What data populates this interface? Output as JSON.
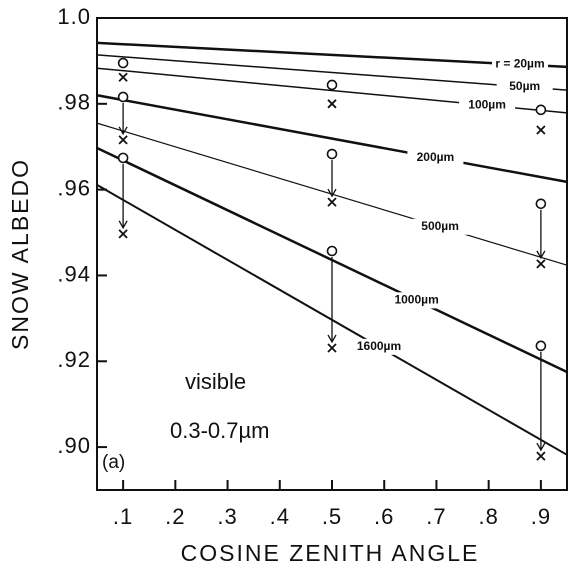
{
  "chart_data": {
    "type": "line",
    "x_label": "COSINE ZENITH ANGLE",
    "y_label": "SNOW ALBEDO",
    "annotations": [
      "visible",
      "0.3-0.7µm",
      "(a)"
    ],
    "x": [
      0.05,
      0.95
    ],
    "series": [
      {
        "name": "r = 20µm",
        "color": "#111111",
        "values": [
          0.9942,
          0.9886
        ]
      },
      {
        "name": "50µm",
        "color": "#111111",
        "values": [
          0.9914,
          0.9832
        ]
      },
      {
        "name": "100µm",
        "color": "#111111",
        "values": [
          0.9883,
          0.9779
        ]
      },
      {
        "name": "200µm",
        "color": "#111111",
        "values": [
          0.982,
          0.9618
        ]
      },
      {
        "name": "500µm",
        "color": "#111111",
        "values": [
          0.9755,
          0.9424
        ]
      },
      {
        "name": "1000µm",
        "color": "#111111",
        "values": [
          0.9697,
          0.9175
        ]
      },
      {
        "name": "1600µm",
        "color": "#111111",
        "values": [
          0.9611,
          0.8982
        ]
      }
    ],
    "scatter": [
      {
        "marker": "o",
        "x": [
          0.1,
          0.1,
          0.1,
          0.5,
          0.5,
          0.5,
          0.9,
          0.9,
          0.9
        ],
        "values": [
          0.9895,
          0.9816,
          0.9674,
          0.9844,
          0.9683,
          0.9457,
          0.9786,
          0.9567,
          0.9236
        ]
      },
      {
        "marker": "x",
        "x": [
          0.1,
          0.1,
          0.1,
          0.5,
          0.5,
          0.5,
          0.9,
          0.9,
          0.9
        ],
        "values": [
          0.9862,
          0.9716,
          0.9497,
          0.98,
          0.9571,
          0.9231,
          0.9739,
          0.9427,
          0.8979
        ]
      }
    ],
    "xlim": [
      0.05,
      0.95
    ],
    "ylim": [
      0.89,
      1.0
    ],
    "xticks": [
      {
        "value": 0.1,
        "label": ".1"
      },
      {
        "value": 0.2,
        "label": ".2"
      },
      {
        "value": 0.3,
        "label": ".3"
      },
      {
        "value": 0.4,
        "label": ".4"
      },
      {
        "value": 0.5,
        "label": ".5"
      },
      {
        "value": 0.6,
        "label": ".6"
      },
      {
        "value": 0.7,
        "label": ".7"
      },
      {
        "value": 0.8,
        "label": ".8"
      },
      {
        "value": 0.9,
        "label": ".9"
      }
    ],
    "yticks": [
      {
        "value": 0.9,
        "label": ".90"
      },
      {
        "value": 0.92,
        "label": ".92"
      },
      {
        "value": 0.94,
        "label": ".94"
      },
      {
        "value": 0.96,
        "label": ".96"
      },
      {
        "value": 0.98,
        "label": ".98"
      },
      {
        "value": 1.0,
        "label": "1.0"
      }
    ]
  }
}
